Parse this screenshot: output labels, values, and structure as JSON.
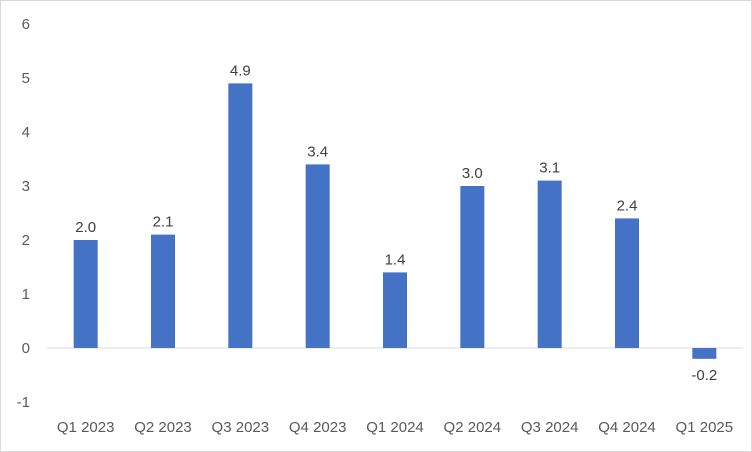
{
  "chart_data": {
    "type": "bar",
    "categories": [
      "Q1 2023",
      "Q2 2023",
      "Q3 2023",
      "Q4 2023",
      "Q1 2024",
      "Q2 2024",
      "Q3 2024",
      "Q4 2024",
      "Q1 2025"
    ],
    "values": [
      2.0,
      2.1,
      4.9,
      3.4,
      1.4,
      3.0,
      3.1,
      2.4,
      -0.2
    ],
    "value_labels": [
      "2.0",
      "2.1",
      "4.9",
      "3.4",
      "1.4",
      "3.0",
      "3.1",
      "2.4",
      "-0.2"
    ],
    "ylim": [
      -1,
      6
    ],
    "yticks": [
      -1,
      0,
      1,
      2,
      3,
      4,
      5,
      6
    ],
    "grid": false,
    "legend": "none",
    "title": "",
    "xlabel": "",
    "ylabel": "",
    "colors": {
      "bar": "#4472c4",
      "axis_line": "#d9d9d9",
      "text": "#595959"
    }
  }
}
